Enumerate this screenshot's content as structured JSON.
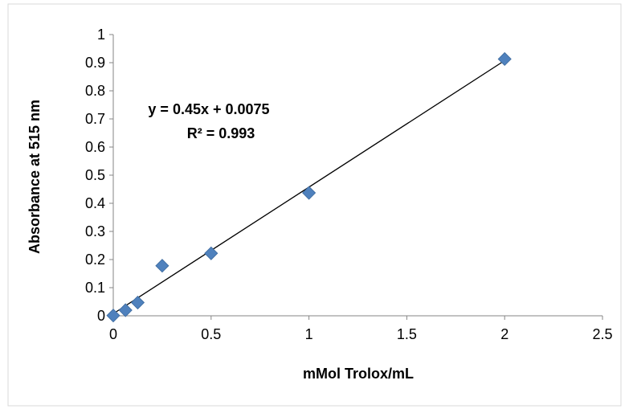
{
  "chart_data": {
    "type": "scatter",
    "title": "",
    "xlabel": "mMol Trolox/mL",
    "ylabel": "Absorbance at 515 nm",
    "xlim": [
      0,
      2.5
    ],
    "ylim": [
      0,
      1
    ],
    "x_ticks": [
      "0",
      "0.5",
      "1",
      "1.5",
      "2",
      "2.5"
    ],
    "y_ticks": [
      "0",
      "0.1",
      "0.2",
      "0.3",
      "0.4",
      "0.5",
      "0.6",
      "0.7",
      "0.8",
      "0.9",
      "1"
    ],
    "grid": false,
    "legend": "none",
    "series": [
      {
        "marker": "diamond",
        "color": "#4f81bd",
        "x": [
          0,
          0.0625,
          0.125,
          0.25,
          0.5,
          1,
          2
        ],
        "y": [
          0.001,
          0.02,
          0.047,
          0.178,
          0.222,
          0.437,
          0.913
        ]
      }
    ],
    "trendline": {
      "type": "linear",
      "slope": 0.45,
      "intercept": 0.0075,
      "x_range": [
        0,
        2
      ],
      "color": "#000000"
    },
    "annotations": {
      "equation": "y = 0.45x + 0.0075",
      "r_squared": "R² = 0.993"
    }
  }
}
